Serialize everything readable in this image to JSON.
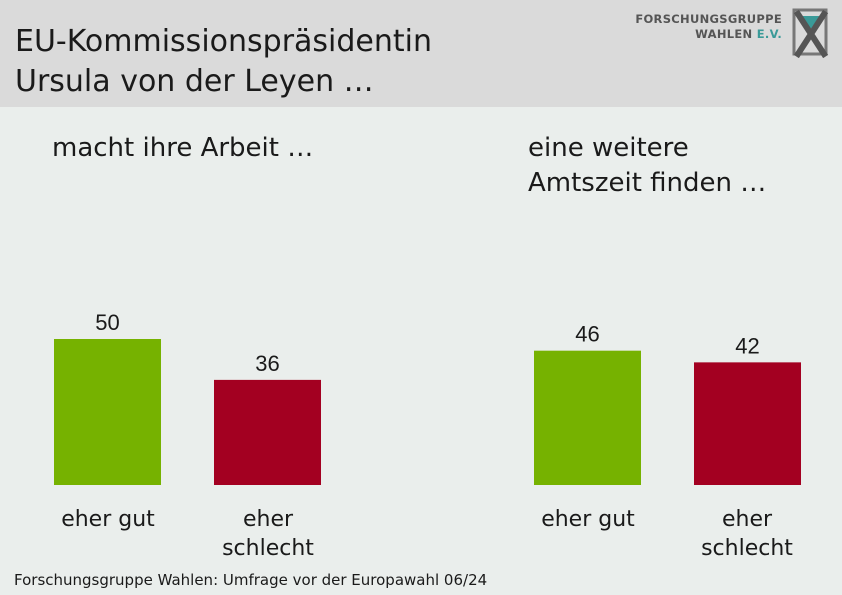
{
  "header": {
    "title_line1": "EU-Kommissionspräsidentin",
    "title_line2": "Ursula von der Leyen …"
  },
  "logo": {
    "line1": "FORSCHUNGSGRUPPE",
    "line2": "WAHLEN",
    "line2_suffix": "E.V."
  },
  "footer": "Forschungsgruppe Wahlen: Umfrage vor der Europawahl 06/24",
  "colors": {
    "positive": "#76b200",
    "negative": "#a30021",
    "header_bg": "#dadada",
    "body_bg": "#eaeeec"
  },
  "chart_data": [
    {
      "type": "bar",
      "title": "macht ihre Arbeit …",
      "categories": [
        "eher gut",
        "eher schlecht"
      ],
      "values": [
        50,
        36
      ],
      "ylim": [
        0,
        50
      ]
    },
    {
      "type": "bar",
      "title": "eine weitere Amtszeit finden …",
      "title_line1": "eine weitere",
      "title_line2": "Amtszeit finden …",
      "categories": [
        "eher gut",
        "eher schlecht"
      ],
      "values": [
        46,
        42
      ],
      "ylim": [
        0,
        50
      ]
    }
  ]
}
